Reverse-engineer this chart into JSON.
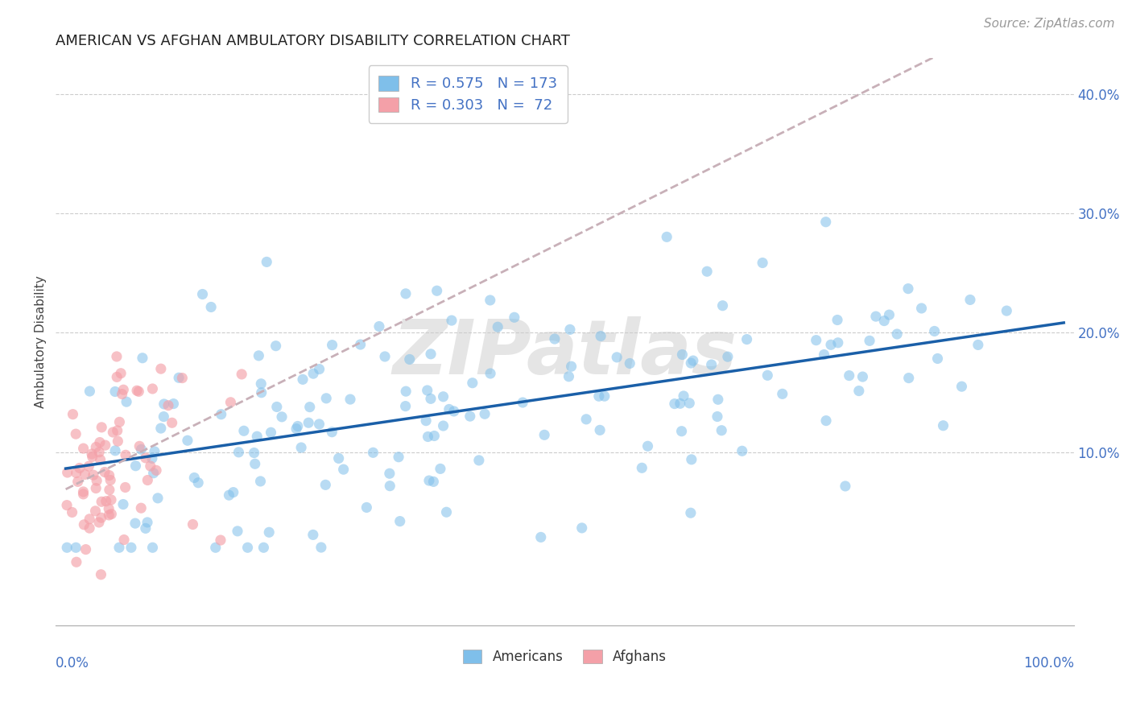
{
  "title": "AMERICAN VS AFGHAN AMBULATORY DISABILITY CORRELATION CHART",
  "source": "Source: ZipAtlas.com",
  "ylabel": "Ambulatory Disability",
  "xlim": [
    -0.01,
    1.01
  ],
  "ylim": [
    -0.045,
    0.43
  ],
  "yticks": [
    0.0,
    0.1,
    0.2,
    0.3,
    0.4
  ],
  "ytick_labels": [
    "",
    "10.0%",
    "20.0%",
    "30.0%",
    "40.0%"
  ],
  "american_color": "#7fbfea",
  "afghan_color": "#f4a0a8",
  "american_R": 0.575,
  "american_N": 173,
  "afghan_R": 0.303,
  "afghan_N": 72,
  "trend_american_color": "#1a5fa8",
  "trend_afghan_color": "#c8b0b8",
  "background_color": "#ffffff",
  "watermark": "ZIPatlas",
  "title_fontsize": 13,
  "source_fontsize": 11,
  "legend_fontsize": 13
}
